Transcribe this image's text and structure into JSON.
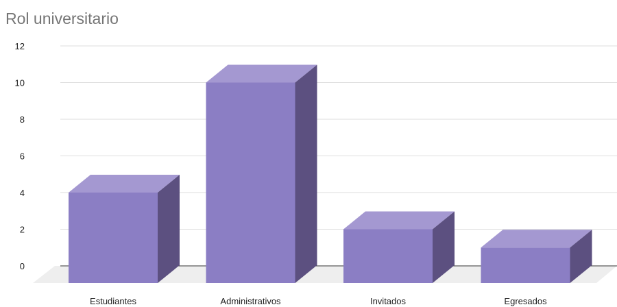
{
  "chart_data": {
    "type": "bar",
    "title": "Rol universitario",
    "categories": [
      "Estudiantes",
      "Administrativos",
      "Invitados",
      "Egresados"
    ],
    "series": [
      {
        "values": [
          4,
          10,
          2,
          1
        ]
      }
    ],
    "ylim": [
      0,
      12
    ],
    "yticks": [
      0,
      2,
      4,
      6,
      8,
      10,
      12
    ],
    "grid": true,
    "style": "3d",
    "colors": {
      "front": "#8b7ec4",
      "top": "#a498d1",
      "side": "#5c5080",
      "floor": "#eeeeee",
      "grid": "#dddddd",
      "axis": "#333333"
    }
  }
}
